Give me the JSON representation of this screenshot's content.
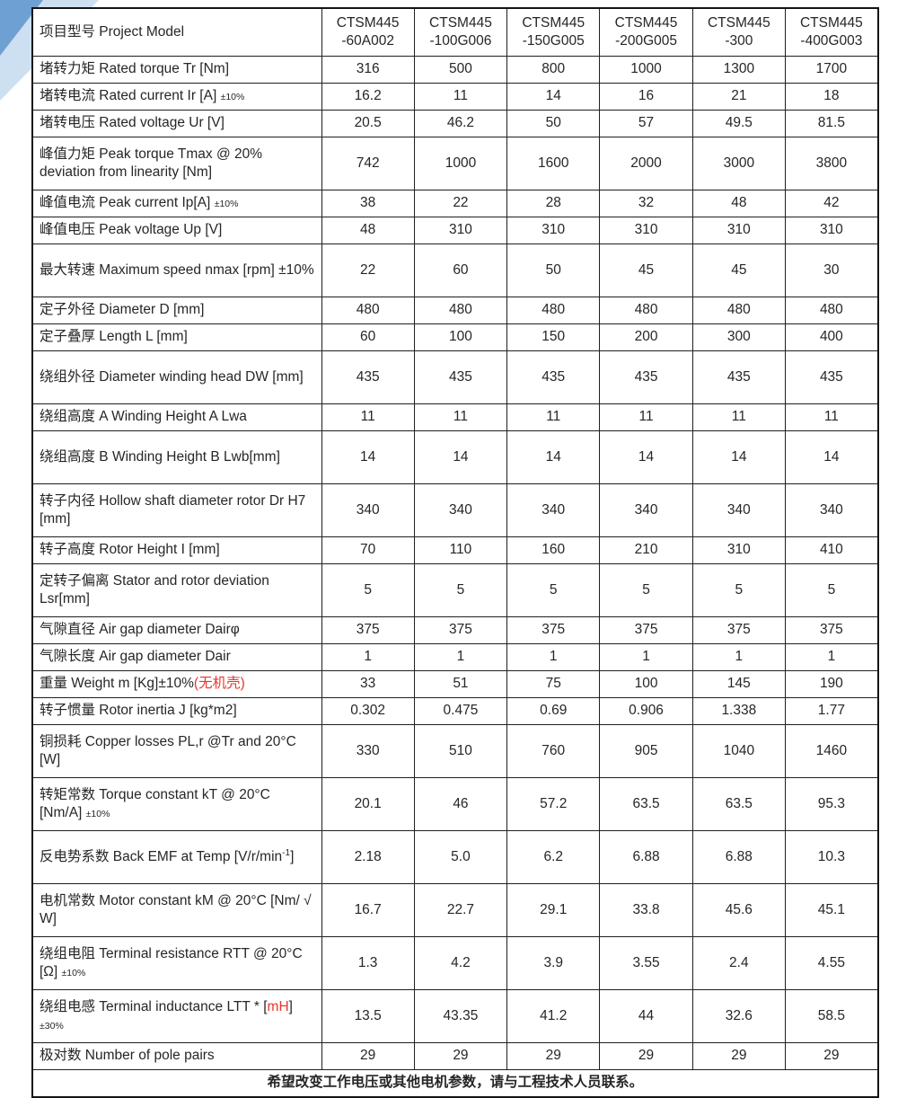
{
  "colors": {
    "red": "#e8352c",
    "text": "#262626",
    "border": "#1f1f1f",
    "triangle_dark": "#6fa0d3",
    "triangle_light": "#cde0f1"
  },
  "header": {
    "label": "项目型号 Project Model",
    "models": [
      [
        "CTSM445",
        "-60A002"
      ],
      [
        "CTSM445",
        "-100G006"
      ],
      [
        "CTSM445",
        "-150G005"
      ],
      [
        "CTSM445",
        "-200G005"
      ],
      [
        "CTSM445",
        "-300"
      ],
      [
        "CTSM445",
        "-400G003"
      ]
    ]
  },
  "rows": [
    {
      "h": 1,
      "label": [
        {
          "t": "堵转力矩 Rated torque Tr  [Nm]"
        }
      ],
      "values": [
        "316",
        "500",
        "800",
        "1000",
        "1300",
        "1700"
      ]
    },
    {
      "h": 1,
      "label": [
        {
          "t": "堵转电流 Rated current Ir [A] "
        },
        {
          "t": "±10%",
          "s": "small"
        }
      ],
      "values": [
        "16.2",
        "11",
        "14",
        "16",
        "21",
        "18"
      ]
    },
    {
      "h": 1,
      "label": [
        {
          "t": "堵转电压 Rated voltage Ur [V]"
        }
      ],
      "values": [
        "20.5",
        "46.2",
        "50",
        "57",
        "49.5",
        "81.5"
      ]
    },
    {
      "h": 2,
      "label": [
        {
          "t": "峰值力矩 Peak torque Tmax @ 20% deviation from linearity [Nm]"
        }
      ],
      "values": [
        "742",
        "1000",
        "1600",
        "2000",
        "3000",
        "3800"
      ]
    },
    {
      "h": 1,
      "label": [
        {
          "t": "峰值电流 Peak current Ip[A] "
        },
        {
          "t": "±10%",
          "s": "small"
        }
      ],
      "values": [
        "38",
        "22",
        "28",
        "32",
        "48",
        "42"
      ]
    },
    {
      "h": 1,
      "label": [
        {
          "t": "峰值电压 Peak voltage Up [V]"
        }
      ],
      "values": [
        "48",
        "310",
        "310",
        "310",
        "310",
        "310"
      ]
    },
    {
      "h": 2,
      "label": [
        {
          "t": "最大转速 Maximum speed nmax [rpm] ±10%"
        }
      ],
      "values": [
        "22",
        "60",
        "50",
        "45",
        "45",
        "30"
      ]
    },
    {
      "h": 1,
      "label": [
        {
          "t": "定子外径 Diameter D [mm]"
        }
      ],
      "values": [
        "480",
        "480",
        "480",
        "480",
        "480",
        "480"
      ]
    },
    {
      "h": 1,
      "label": [
        {
          "t": "定子叠厚 Length L [mm]"
        }
      ],
      "values": [
        "60",
        "100",
        "150",
        "200",
        "300",
        "400"
      ]
    },
    {
      "h": 2,
      "label": [
        {
          "t": "绕组外径 Diameter winding head DW [mm]"
        }
      ],
      "values": [
        "435",
        "435",
        "435",
        "435",
        "435",
        "435"
      ]
    },
    {
      "h": 1,
      "label": [
        {
          "t": "绕组高度 A Winding Height A Lwa"
        }
      ],
      "values": [
        "11",
        "11",
        "11",
        "11",
        "11",
        "11"
      ]
    },
    {
      "h": 2,
      "label": [
        {
          "t": "绕组高度 B Winding Height B Lwb[mm]"
        }
      ],
      "values": [
        "14",
        "14",
        "14",
        "14",
        "14",
        "14"
      ]
    },
    {
      "h": 2,
      "label": [
        {
          "t": "转子内径 Hollow shaft diameter rotor Dr H7 [mm]"
        }
      ],
      "values": [
        "340",
        "340",
        "340",
        "340",
        "340",
        "340"
      ]
    },
    {
      "h": 1,
      "label": [
        {
          "t": "转子高度 Rotor Height I [mm]"
        }
      ],
      "values": [
        "70",
        "110",
        "160",
        "210",
        "310",
        "410"
      ]
    },
    {
      "h": 2,
      "label": [
        {
          "t": "定转子偏离 Stator and rotor deviation Lsr[mm]"
        }
      ],
      "values": [
        "5",
        "5",
        "5",
        "5",
        "5",
        "5"
      ]
    },
    {
      "h": 1,
      "label": [
        {
          "t": "气隙直径 Air gap diameter Dairφ"
        }
      ],
      "values": [
        "375",
        "375",
        "375",
        "375",
        "375",
        "375"
      ]
    },
    {
      "h": 1,
      "label": [
        {
          "t": "气隙长度 Air gap diameter Dair"
        }
      ],
      "values": [
        "1",
        "1",
        "1",
        "1",
        "1",
        "1"
      ]
    },
    {
      "h": 1,
      "label": [
        {
          "t": "重量 Weight m [Kg]±10%"
        },
        {
          "t": "(无机壳)",
          "s": "red"
        }
      ],
      "values": [
        "33",
        "51",
        "75",
        "100",
        "145",
        "190"
      ]
    },
    {
      "h": 1,
      "label": [
        {
          "t": "转子惯量 Rotor inertia J [kg*m2]"
        }
      ],
      "values": [
        "0.302",
        "0.475",
        "0.69",
        "0.906",
        "1.338",
        "1.77"
      ]
    },
    {
      "h": 2,
      "label": [
        {
          "t": "铜损耗 Copper losses PL,r @Tr and 20°C [W]"
        }
      ],
      "values": [
        "330",
        "510",
        "760",
        "905",
        "1040",
        "1460"
      ]
    },
    {
      "h": 2,
      "label": [
        {
          "t": "转矩常数 Torque constant kT @ 20°C [Nm/A] "
        },
        {
          "t": "±10%",
          "s": "small"
        }
      ],
      "values": [
        "20.1",
        "46",
        "57.2",
        "63.5",
        "63.5",
        "95.3"
      ]
    },
    {
      "h": 2,
      "label": [
        {
          "t": "反电势系数 Back EMF at Temp [V/r/min"
        },
        {
          "t": "-1",
          "s": "sup"
        },
        {
          "t": "]"
        }
      ],
      "values": [
        "2.18",
        "5.0",
        "6.2",
        "6.88",
        "6.88",
        "10.3"
      ]
    },
    {
      "h": 2,
      "label": [
        {
          "t": "电机常数 Motor constant kM @ 20°C [Nm/ √ W]"
        }
      ],
      "values": [
        "16.7",
        "22.7",
        "29.1",
        "33.8",
        "45.6",
        "45.1"
      ]
    },
    {
      "h": 2,
      "label": [
        {
          "t": "绕组电阻 Terminal resistance RTT @ 20°C [Ω] "
        },
        {
          "t": "±10%",
          "s": "small"
        }
      ],
      "values": [
        "1.3",
        "4.2",
        "3.9",
        "3.55",
        "2.4",
        "4.55"
      ]
    },
    {
      "h": 2,
      "label": [
        {
          "t": "绕组电感 Terminal inductance LTT * ["
        },
        {
          "t": "mH",
          "s": "red"
        },
        {
          "t": "] "
        },
        {
          "t": "±30%",
          "s": "small"
        }
      ],
      "values": [
        "13.5",
        "43.35",
        "41.2",
        "44",
        "32.6",
        "58.5"
      ]
    },
    {
      "h": 1,
      "label": [
        {
          "t": "极对数 Number of pole pairs"
        }
      ],
      "values": [
        "29",
        "29",
        "29",
        "29",
        "29",
        "29"
      ]
    }
  ],
  "footer": {
    "note": "希望改变工作电压或其他电机参数，请与工程技术人员联系。"
  }
}
